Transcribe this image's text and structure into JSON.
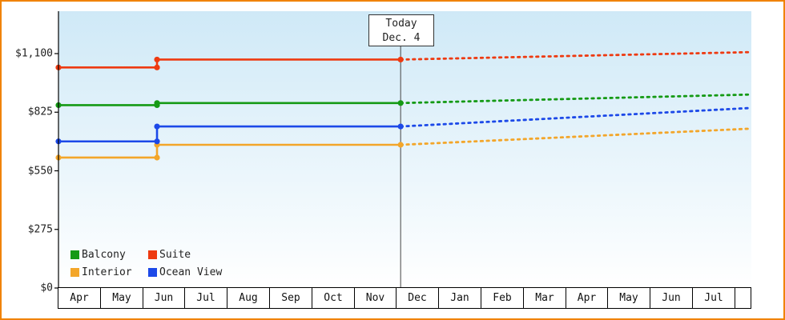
{
  "frame": {
    "border_color": "#f08200"
  },
  "today_annotation": {
    "line1": "Today",
    "line2": "Dec. 4"
  },
  "axes": {
    "y_ticks": [
      {
        "label": "$1,100",
        "value": 1100
      },
      {
        "label": "$825",
        "value": 825
      },
      {
        "label": "$550",
        "value": 550
      },
      {
        "label": "$275",
        "value": 275
      },
      {
        "label": "$0",
        "value": 0
      }
    ],
    "months": [
      "Apr",
      "May",
      "Jun",
      "Jul",
      "Aug",
      "Sep",
      "Oct",
      "Nov",
      "Dec",
      "Jan",
      "Feb",
      "Mar",
      "Apr",
      "May",
      "Jun",
      "Jul"
    ]
  },
  "legend": {
    "items": [
      {
        "label": "Balcony",
        "color": "#159a15"
      },
      {
        "label": "Suite",
        "color": "#ee3a11"
      },
      {
        "label": "Interior",
        "color": "#f3a62a"
      },
      {
        "label": "Ocean View",
        "color": "#1c49e8"
      }
    ]
  },
  "chart_data": {
    "type": "line",
    "title": "",
    "x_tick_labels": [
      "Apr",
      "May",
      "Jun",
      "Jul",
      "Aug",
      "Sep",
      "Oct",
      "Nov",
      "Dec",
      "Jan",
      "Feb",
      "Mar",
      "Apr",
      "May",
      "Jun",
      "Jul"
    ],
    "y_tick_labels": [
      "$1,100",
      "$825",
      "$550",
      "$275",
      "$0"
    ],
    "ylim": [
      0,
      1300
    ],
    "x_unit": "month-column index, 0 = first Apr column left edge",
    "x_end": 16.38,
    "today_marker": {
      "x": 8.09,
      "label": "Today Dec. 4"
    },
    "grid": false,
    "legend_position": "bottom-left inside plot",
    "line_style_note": "solid = history, dotted = forecast after today",
    "series": [
      {
        "name": "Interior",
        "color": "#f3a62a",
        "solid_points": [
          [
            0,
            612
          ],
          [
            2.33,
            612
          ],
          [
            2.33,
            672
          ],
          [
            8.09,
            672
          ]
        ],
        "projected_points": [
          [
            8.09,
            672
          ],
          [
            16.38,
            748
          ]
        ]
      },
      {
        "name": "Ocean View",
        "color": "#1c49e8",
        "solid_points": [
          [
            0,
            688
          ],
          [
            2.33,
            688
          ],
          [
            2.33,
            758
          ],
          [
            8.09,
            758
          ]
        ],
        "projected_points": [
          [
            8.09,
            758
          ],
          [
            16.38,
            845
          ]
        ]
      },
      {
        "name": "Balcony",
        "color": "#159a15",
        "solid_points": [
          [
            0,
            858
          ],
          [
            2.33,
            858
          ],
          [
            2.33,
            868
          ],
          [
            8.09,
            868
          ]
        ],
        "projected_points": [
          [
            8.09,
            868
          ],
          [
            16.38,
            908
          ]
        ]
      },
      {
        "name": "Suite",
        "color": "#ee3a11",
        "solid_points": [
          [
            0,
            1035
          ],
          [
            2.33,
            1035
          ],
          [
            2.33,
            1072
          ],
          [
            8.09,
            1072
          ]
        ],
        "projected_points": [
          [
            8.09,
            1072
          ],
          [
            16.38,
            1107
          ]
        ]
      }
    ]
  }
}
